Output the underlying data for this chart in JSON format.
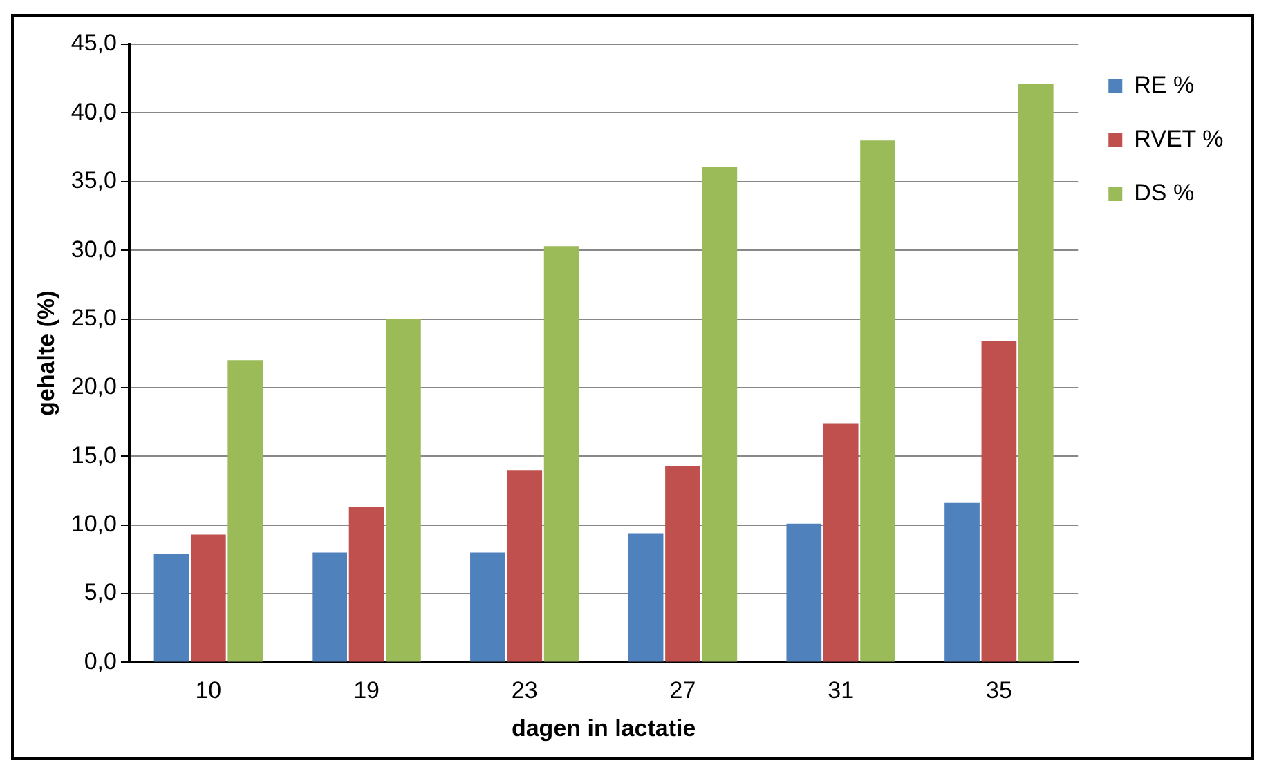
{
  "chart_data": {
    "type": "bar",
    "xlabel": "dagen in lactatie",
    "ylabel": "gehalte (%)",
    "categories": [
      "10",
      "19",
      "23",
      "27",
      "31",
      "35"
    ],
    "series": [
      {
        "name": "RE %",
        "color": "#4f81bd",
        "values": [
          7.9,
          8.0,
          8.0,
          9.4,
          10.1,
          11.6
        ]
      },
      {
        "name": "RVET %",
        "color": "#c0504d",
        "values": [
          9.3,
          11.3,
          14.0,
          14.3,
          17.4,
          23.4
        ]
      },
      {
        "name": "DS %",
        "color": "#9bbb59",
        "values": [
          22.0,
          25.0,
          30.3,
          36.1,
          38.0,
          42.1
        ]
      }
    ],
    "ylim": [
      0,
      45
    ],
    "yticks": [
      {
        "value": 0,
        "label": "0,0"
      },
      {
        "value": 5,
        "label": "5,0"
      },
      {
        "value": 10,
        "label": "10,0"
      },
      {
        "value": 15,
        "label": "15,0"
      },
      {
        "value": 20,
        "label": "20,0"
      },
      {
        "value": 25,
        "label": "25,0"
      },
      {
        "value": 30,
        "label": "30,0"
      },
      {
        "value": 35,
        "label": "35,0"
      },
      {
        "value": 40,
        "label": "40,0"
      },
      {
        "value": 45,
        "label": "45,0"
      }
    ],
    "grid": "y",
    "legend": "right"
  }
}
